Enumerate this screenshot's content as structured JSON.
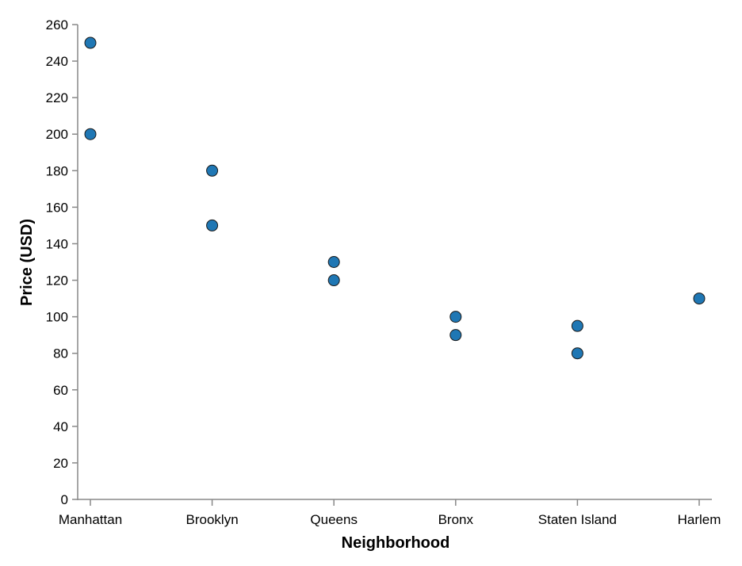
{
  "chart_data": {
    "type": "scatter",
    "title": "",
    "xlabel": "Neighborhood",
    "ylabel": "Price (USD)",
    "categories": [
      "Manhattan",
      "Brooklyn",
      "Queens",
      "Bronx",
      "Staten Island",
      "Harlem"
    ],
    "ylim": [
      0,
      260
    ],
    "yticks": [
      0,
      20,
      40,
      60,
      80,
      100,
      120,
      140,
      160,
      180,
      200,
      220,
      240,
      260
    ],
    "grid": false,
    "legend": "none",
    "point_color": "#1f77b4",
    "points": [
      {
        "x": "Manhattan",
        "y": 250
      },
      {
        "x": "Manhattan",
        "y": 200
      },
      {
        "x": "Brooklyn",
        "y": 180
      },
      {
        "x": "Brooklyn",
        "y": 150
      },
      {
        "x": "Queens",
        "y": 130
      },
      {
        "x": "Queens",
        "y": 120
      },
      {
        "x": "Bronx",
        "y": 100
      },
      {
        "x": "Bronx",
        "y": 90
      },
      {
        "x": "Staten Island",
        "y": 95
      },
      {
        "x": "Staten Island",
        "y": 80
      },
      {
        "x": "Harlem",
        "y": 110
      }
    ]
  }
}
